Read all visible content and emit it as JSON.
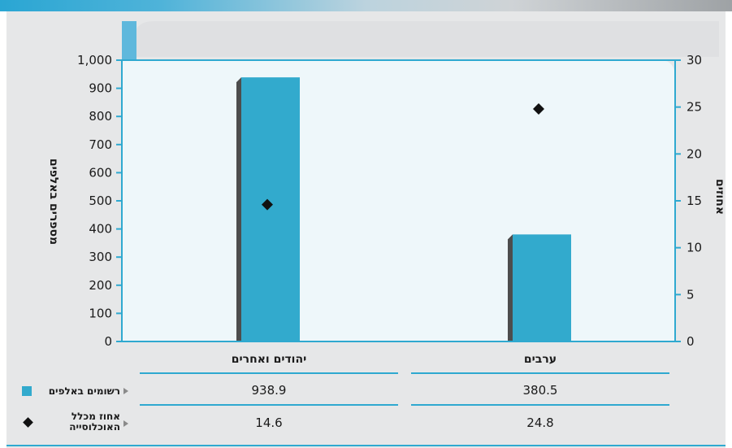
{
  "chart_data": {
    "type": "bar",
    "categories": [
      "יהודים ואחרים",
      "ערבים"
    ],
    "series": [
      {
        "name": "רשומים באלפים",
        "type": "bar",
        "axis": "left",
        "values": [
          938.9,
          380.5
        ]
      },
      {
        "name": "אחוז מכלל האוכלוסייה",
        "type": "scatter",
        "marker": "diamond",
        "axis": "right",
        "values": [
          14.6,
          24.8
        ]
      }
    ],
    "ylabel": "מספרים באלפים",
    "y2label": "אחוזים",
    "ylim": [
      0,
      1000
    ],
    "y2lim": [
      0,
      30
    ],
    "yticks": [
      "0",
      "100",
      "200",
      "300",
      "400",
      "500",
      "600",
      "700",
      "800",
      "900",
      "1,000"
    ],
    "y2ticks": [
      "0",
      "5",
      "10",
      "15",
      "20",
      "25",
      "30"
    ],
    "grid": false,
    "colors": {
      "bar": "#32aacd",
      "bar_shadow": "#4d4d4d",
      "marker": "#111111",
      "axis": "#2fa9d0",
      "plot_bg": "#eef7fa"
    }
  },
  "table": {
    "columns": [
      "יהודים ואחרים",
      "ערבים"
    ],
    "rows": [
      {
        "label": "רשומים באלפים",
        "icon": "square-swatch-icon",
        "values": [
          "938.9",
          "380.5"
        ]
      },
      {
        "label_line1": "אחוז מכלל",
        "label_line2": "האוכלוסייה",
        "icon": "diamond-marker-icon",
        "values": [
          "14.6",
          "24.8"
        ]
      }
    ]
  }
}
